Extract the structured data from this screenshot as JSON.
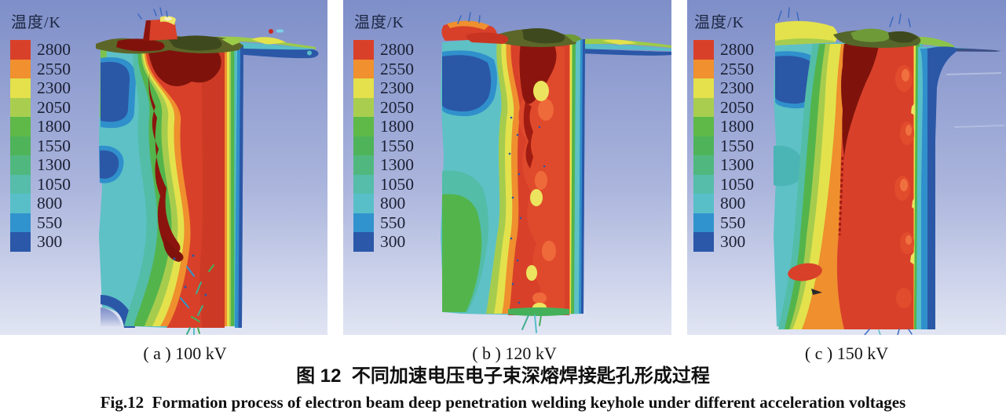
{
  "legend": {
    "title": "温度/K",
    "values": [
      "2800",
      "2550",
      "2300",
      "2050",
      "1800",
      "1550",
      "1300",
      "1050",
      "800",
      "550",
      "300"
    ],
    "colors": [
      "#d9402a",
      "#f0902e",
      "#e4e14c",
      "#a9ce4f",
      "#5eb948",
      "#4fb35a",
      "#50b87f",
      "#55bdaa",
      "#58bfc9",
      "#3193cd",
      "#2b58a8"
    ]
  },
  "panels": [
    {
      "id": "a",
      "caption": "( a ) 100 kV",
      "voltage": "100 kV"
    },
    {
      "id": "b",
      "caption": "( b ) 120 kV",
      "voltage": "120 kV"
    },
    {
      "id": "c",
      "caption": "( c ) 150 kV",
      "voltage": "150 kV"
    }
  ],
  "figure": {
    "caption_cn": "图 12  不同加速电压电子束深熔焊接匙孔形成过程",
    "caption_en": "Fig.12  Formation process of electron beam deep penetration welding keyhole under different acceleration voltages"
  },
  "colors": {
    "background_top": "#7e8ec8",
    "background_bottom": "#e1e5f3",
    "molten_red": "#d8402a",
    "keyhole_dark_red": "#8b150e",
    "top_surface_olive": "#5c6628",
    "cold_dark_blue": "#2b57a7"
  }
}
